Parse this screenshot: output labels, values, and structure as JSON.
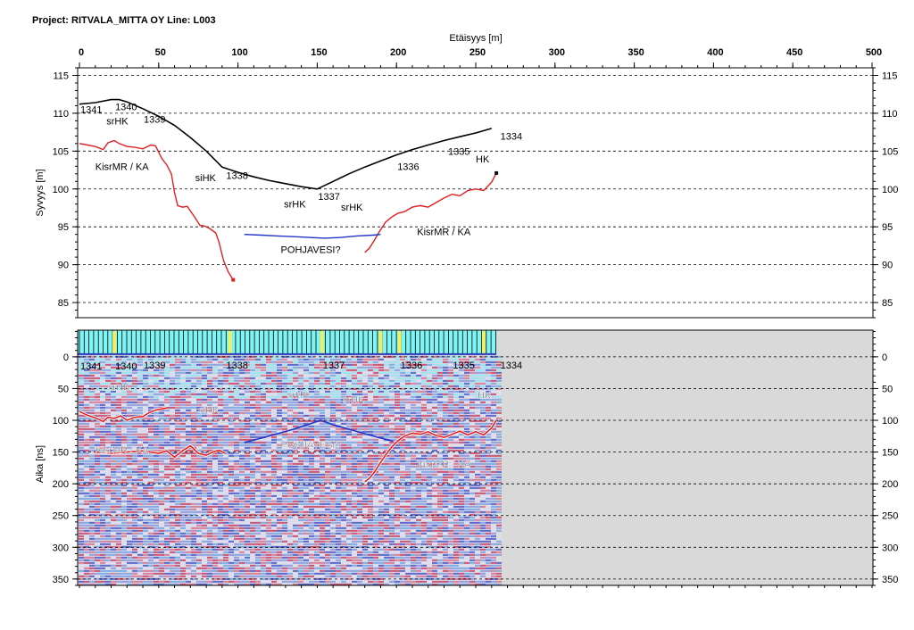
{
  "project_title": "Project: RITVALA_MITTA OY  Line: L003",
  "chart_data": [
    {
      "type": "line",
      "name": "elevation-profile",
      "xlabel": "Etäisyys [m]",
      "ylabel": "Syvyys [m]",
      "xlim": [
        0,
        500
      ],
      "ylim": [
        83,
        116
      ],
      "x_ticks": [
        0,
        50,
        100,
        150,
        200,
        250,
        300,
        350,
        400,
        450,
        500
      ],
      "y_ticks": [
        85,
        90,
        95,
        100,
        105,
        110,
        115
      ],
      "grid": "horizontal-dashed",
      "series": [
        {
          "color": "#000000",
          "points": [
            [
              0,
              111.2
            ],
            [
              10,
              111.4
            ],
            [
              20,
              111.8
            ],
            [
              25,
              111.8
            ],
            [
              30,
              111.5
            ],
            [
              40,
              110.6
            ],
            [
              50,
              109.6
            ],
            [
              60,
              108.4
            ],
            [
              70,
              106.8
            ],
            [
              80,
              105.0
            ],
            [
              90,
              102.9
            ],
            [
              100,
              102.2
            ],
            [
              110,
              101.6
            ],
            [
              120,
              101.1
            ],
            [
              130,
              100.7
            ],
            [
              140,
              100.3
            ],
            [
              150,
              100.0
            ],
            [
              160,
              101.0
            ],
            [
              170,
              102.0
            ],
            [
              180,
              102.9
            ],
            [
              190,
              103.7
            ],
            [
              200,
              104.5
            ],
            [
              210,
              105.2
            ],
            [
              220,
              105.8
            ],
            [
              230,
              106.4
            ],
            [
              240,
              106.9
            ],
            [
              250,
              107.4
            ],
            [
              260,
              108.0
            ]
          ]
        },
        {
          "color": "#e02020",
          "points": [
            [
              0,
              106.0
            ],
            [
              5,
              105.8
            ],
            [
              10,
              105.6
            ],
            [
              15,
              105.2
            ],
            [
              18,
              106.1
            ],
            [
              22,
              106.4
            ],
            [
              25,
              106.0
            ],
            [
              30,
              105.6
            ],
            [
              35,
              105.5
            ],
            [
              40,
              105.3
            ],
            [
              45,
              105.8
            ],
            [
              48,
              105.7
            ],
            [
              52,
              104.0
            ],
            [
              55,
              103.2
            ],
            [
              58,
              102.0
            ],
            [
              60,
              99.5
            ],
            [
              62,
              97.8
            ],
            [
              65,
              97.6
            ],
            [
              68,
              97.7
            ],
            [
              72,
              96.5
            ],
            [
              76,
              95.2
            ],
            [
              79,
              95.1
            ],
            [
              82,
              94.8
            ],
            [
              86,
              94.2
            ],
            [
              88,
              93.0
            ],
            [
              91,
              90.5
            ],
            [
              94,
              89.0
            ],
            [
              97,
              88.0
            ]
          ]
        },
        {
          "color": "#e02020",
          "points": [
            [
              180,
              91.6
            ],
            [
              183,
              92.2
            ],
            [
              186,
              93.2
            ],
            [
              189,
              94.3
            ],
            [
              193,
              95.6
            ],
            [
              197,
              96.3
            ],
            [
              201,
              96.8
            ],
            [
              205,
              97.0
            ],
            [
              210,
              97.6
            ],
            [
              215,
              97.8
            ],
            [
              220,
              97.6
            ],
            [
              225,
              98.2
            ],
            [
              230,
              98.8
            ],
            [
              235,
              99.3
            ],
            [
              240,
              99.1
            ],
            [
              245,
              99.8
            ],
            [
              250,
              100.0
            ],
            [
              255,
              99.8
            ],
            [
              260,
              100.9
            ],
            [
              263,
              102.1
            ]
          ]
        },
        {
          "color": "#1f35c8",
          "points": [
            [
              104,
              94.0
            ],
            [
              115,
              93.9
            ],
            [
              125,
              93.8
            ],
            [
              135,
              93.7
            ],
            [
              145,
              93.6
            ],
            [
              155,
              93.5
            ],
            [
              165,
              93.6
            ],
            [
              175,
              93.8
            ],
            [
              185,
              93.9
            ],
            [
              190,
              94.0
            ]
          ]
        }
      ],
      "point_labels": [
        {
          "text": "1341",
          "x": 0,
          "y": 110.5
        },
        {
          "text": "1340",
          "x": 22,
          "y": 110.9
        },
        {
          "text": "1339",
          "x": 40,
          "y": 109.2
        },
        {
          "text": "1338",
          "x": 92,
          "y": 101.8
        },
        {
          "text": "1337",
          "x": 150,
          "y": 99.0
        },
        {
          "text": "1336",
          "x": 200,
          "y": 103.0
        },
        {
          "text": "1335",
          "x": 232,
          "y": 105.0
        },
        {
          "text": "1334",
          "x": 265,
          "y": 107.0
        }
      ],
      "annotations": [
        {
          "text": "srHK",
          "x": 17,
          "y": 109.0
        },
        {
          "text": "KisrMR / KA",
          "x": 10,
          "y": 103.0
        },
        {
          "text": "siHK",
          "x": 73,
          "y": 101.5
        },
        {
          "text": "srHK",
          "x": 129,
          "y": 98.0
        },
        {
          "text": "srHK",
          "x": 165,
          "y": 97.6
        },
        {
          "text": "KisrMR / KA",
          "x": 213,
          "y": 94.4
        },
        {
          "text": "HK",
          "x": 250,
          "y": 104.0
        },
        {
          "text": "POHJAVESI?",
          "x": 127,
          "y": 92.0
        }
      ]
    },
    {
      "type": "heatmap",
      "name": "radargram",
      "ylabel": "Aika [ns]",
      "xlim": [
        0,
        500
      ],
      "ylim": [
        360,
        -42
      ],
      "data_extent_x": 263,
      "y_ticks": [
        0,
        50,
        100,
        150,
        200,
        250,
        300,
        350
      ],
      "grid": "horizontal-dashed",
      "trace_bar_colors": {
        "normal": "#7ff4f4",
        "marker": "#f0f060",
        "line": "#000000"
      },
      "marker_x": [
        22,
        95,
        153,
        190,
        202,
        255
      ],
      "background": "#d9d9d9",
      "series": [
        {
          "color": "#e02020",
          "points": [
            [
              0,
              86
            ],
            [
              5,
              92
            ],
            [
              10,
              96
            ],
            [
              15,
              102
            ],
            [
              18,
              95
            ],
            [
              22,
              97
            ],
            [
              26,
              93
            ],
            [
              30,
              100
            ],
            [
              35,
              95
            ],
            [
              40,
              94
            ],
            [
              44,
              88
            ],
            [
              48,
              84
            ],
            [
              52,
              82
            ],
            [
              56,
              80
            ]
          ]
        },
        {
          "color": "#e02020",
          "points": [
            [
              10,
              150
            ],
            [
              20,
              152
            ],
            [
              30,
              150
            ],
            [
              40,
              148
            ],
            [
              50,
              152
            ],
            [
              55,
              148
            ],
            [
              60,
              158
            ],
            [
              65,
              148
            ],
            [
              70,
              140
            ],
            [
              75,
              152
            ],
            [
              80,
              155
            ],
            [
              84,
              150
            ],
            [
              88,
              147
            ],
            [
              92,
              152
            ]
          ]
        },
        {
          "color": "#e02020",
          "points": [
            [
              180,
              197
            ],
            [
              183,
              191
            ],
            [
              186,
              182
            ],
            [
              189,
              170
            ],
            [
              193,
              155
            ],
            [
              197,
              142
            ],
            [
              201,
              132
            ],
            [
              205,
              125
            ],
            [
              210,
              120
            ],
            [
              215,
              122
            ],
            [
              220,
              118
            ],
            [
              225,
              124
            ],
            [
              230,
              127
            ],
            [
              235,
              122
            ],
            [
              240,
              117
            ],
            [
              245,
              123
            ],
            [
              250,
              118
            ],
            [
              255,
              123
            ],
            [
              260,
              112
            ],
            [
              263,
              100
            ]
          ]
        },
        {
          "color": "#1f35c8",
          "points": [
            [
              104,
              135
            ],
            [
              115,
              128
            ],
            [
              125,
              121
            ],
            [
              135,
              114
            ],
            [
              145,
              106
            ],
            [
              152,
              100
            ],
            [
              160,
              107
            ],
            [
              170,
              114
            ],
            [
              180,
              121
            ],
            [
              190,
              128
            ],
            [
              198,
              133
            ]
          ]
        }
      ],
      "point_labels": [
        {
          "text": "1341",
          "x": 0,
          "y": 14
        },
        {
          "text": "1340",
          "x": 22,
          "y": 14
        },
        {
          "text": "1339",
          "x": 40,
          "y": 13
        },
        {
          "text": "1338",
          "x": 92,
          "y": 13
        },
        {
          "text": "1337",
          "x": 153,
          "y": 13
        },
        {
          "text": "1336",
          "x": 202,
          "y": 13
        },
        {
          "text": "1335",
          "x": 235,
          "y": 13
        },
        {
          "text": "1334",
          "x": 265,
          "y": 13
        }
      ],
      "annotations": [
        {
          "text": "srHK",
          "x": 18,
          "y": 47
        },
        {
          "text": "siHK",
          "x": 75,
          "y": 83
        },
        {
          "text": "srHK",
          "x": 131,
          "y": 59
        },
        {
          "text": "srHK",
          "x": 166,
          "y": 67
        },
        {
          "text": "HK",
          "x": 251,
          "y": 60
        },
        {
          "text": "KisrMR / KA",
          "x": 10,
          "y": 146
        },
        {
          "text": "POHJAVESI?",
          "x": 127,
          "y": 138
        },
        {
          "text": "KisrMR / KA",
          "x": 213,
          "y": 169
        }
      ]
    }
  ]
}
